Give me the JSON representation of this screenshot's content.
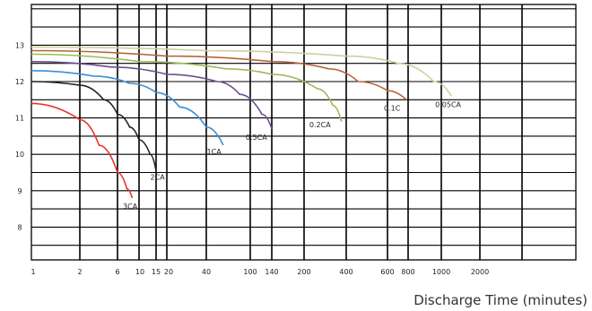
{
  "chart_data": {
    "type": "line",
    "title": "",
    "xlabel": "Discharge Time (minutes)",
    "ylabel": "",
    "x_tick_labels": [
      "1",
      "2",
      "6",
      "10",
      "15",
      "20",
      "40",
      "100",
      "140",
      "200",
      "400",
      "600",
      "800",
      "1000",
      "2000"
    ],
    "y_tick_labels": [
      "8",
      "9",
      "10",
      "11",
      "12",
      "13"
    ],
    "ylim": [
      7,
      14.2
    ],
    "grid": true,
    "series": [
      {
        "name": "3CA",
        "color": "#e8322c",
        "label_pos": [
          8.1,
          8.5
        ],
        "points": [
          [
            1,
            11.4
          ],
          [
            2,
            10.95
          ],
          [
            3.5,
            10.25
          ],
          [
            6,
            9.5
          ],
          [
            7.5,
            9.05
          ],
          [
            8.5,
            8.8
          ]
        ]
      },
      {
        "name": "2CA",
        "color": "#222222",
        "label_pos": [
          15.6,
          9.3
        ],
        "points": [
          [
            1,
            12.0
          ],
          [
            2,
            11.9
          ],
          [
            4,
            11.5
          ],
          [
            6,
            11.1
          ],
          [
            8,
            10.75
          ],
          [
            10,
            10.4
          ],
          [
            13,
            10.0
          ],
          [
            15,
            9.55
          ]
        ]
      },
      {
        "name": "1CA",
        "color": "#3b8fd6",
        "label_pos": [
          47,
          10.0
        ],
        "points": [
          [
            1,
            12.3
          ],
          [
            3,
            12.15
          ],
          [
            8,
            11.95
          ],
          [
            15,
            11.7
          ],
          [
            25,
            11.3
          ],
          [
            40,
            10.75
          ],
          [
            57,
            10.25
          ]
        ]
      },
      {
        "name": "0.5CA",
        "color": "#6c4f8e",
        "label_pos": [
          110,
          10.4
        ],
        "points": [
          [
            1,
            12.55
          ],
          [
            5,
            12.4
          ],
          [
            20,
            12.2
          ],
          [
            50,
            12.0
          ],
          [
            80,
            11.65
          ],
          [
            120,
            11.1
          ],
          [
            140,
            10.7
          ]
        ]
      },
      {
        "name": "0.2CA",
        "color": "#9bbb59",
        "label_pos": [
          260,
          10.75
        ],
        "points": [
          [
            1,
            12.75
          ],
          [
            10,
            12.55
          ],
          [
            60,
            12.35
          ],
          [
            140,
            12.2
          ],
          [
            250,
            11.8
          ],
          [
            320,
            11.35
          ],
          [
            370,
            10.9
          ]
        ]
      },
      {
        "name": "0.1C",
        "color": "#b8643a",
        "label_pos": [
          640,
          11.2
        ],
        "points": [
          [
            1,
            12.85
          ],
          [
            20,
            12.7
          ],
          [
            140,
            12.55
          ],
          [
            300,
            12.35
          ],
          [
            450,
            12.0
          ],
          [
            600,
            11.75
          ],
          [
            780,
            11.5
          ]
        ]
      },
      {
        "name": "0.05CA",
        "color": "#cfcfa0",
        "label_pos": [
          1130,
          11.3
        ],
        "points": [
          [
            1,
            12.95
          ],
          [
            40,
            12.85
          ],
          [
            400,
            12.7
          ],
          [
            700,
            12.5
          ],
          [
            950,
            12.0
          ],
          [
            1200,
            11.6
          ]
        ]
      }
    ]
  }
}
